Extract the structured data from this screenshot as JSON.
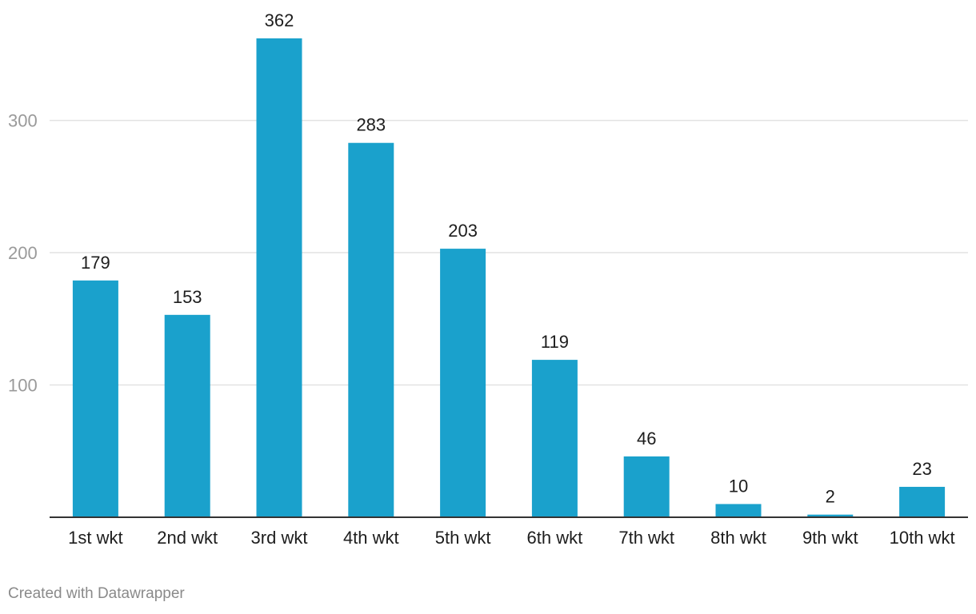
{
  "chart_data": {
    "type": "bar",
    "categories": [
      "1st wkt",
      "2nd wkt",
      "3rd wkt",
      "4th wkt",
      "5th wkt",
      "6th wkt",
      "7th wkt",
      "8th wkt",
      "9th wkt",
      "10th wkt"
    ],
    "values": [
      179,
      153,
      362,
      283,
      203,
      119,
      46,
      10,
      2,
      23
    ],
    "yticks": [
      100,
      200,
      300
    ],
    "ylim": [
      0,
      362
    ],
    "grid": true,
    "data_labels": true,
    "bar_color": "#1aa1cc"
  },
  "footer": {
    "credit": "Created with Datawrapper"
  }
}
